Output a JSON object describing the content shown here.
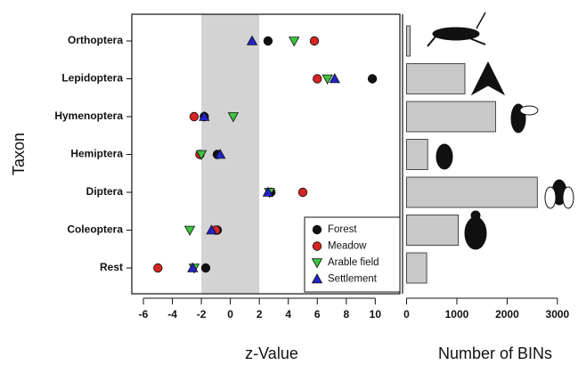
{
  "chart_data": [
    {
      "type": "dot",
      "x_label": "z-Value",
      "y_label": "Taxon",
      "categories": [
        "Orthoptera",
        "Lepidoptera",
        "Hymenoptera",
        "Hemiptera",
        "Diptera",
        "Coleoptera",
        "Rest"
      ],
      "series": [
        {
          "name": "Forest",
          "color": "#111111",
          "marker": "circle",
          "values": [
            2.6,
            9.8,
            -1.8,
            -0.9,
            2.8,
            -0.9,
            -1.7
          ]
        },
        {
          "name": "Meadow",
          "color": "#d42424",
          "marker": "circle",
          "values": [
            5.8,
            6.0,
            -2.5,
            -2.1,
            5.0,
            -1.0,
            -5.0
          ]
        },
        {
          "name": "Arable field",
          "color": "#3cc43c",
          "marker": "triangle-down",
          "values": [
            4.4,
            6.7,
            0.2,
            -2.0,
            2.7,
            -2.8,
            -2.5
          ]
        },
        {
          "name": "Settlement",
          "color": "#2323c8",
          "marker": "triangle-up",
          "values": [
            1.5,
            7.2,
            -1.8,
            -0.7,
            2.6,
            -1.3,
            -2.6
          ]
        }
      ],
      "band": [
        -2,
        2
      ],
      "band_color": "#d3d3d3",
      "xlim": [
        -6.8,
        11.7
      ],
      "xticks": [
        -6,
        -4,
        -2,
        0,
        2,
        4,
        6,
        8,
        10
      ],
      "legend": "lower right"
    },
    {
      "type": "barh",
      "x_label": "Number of BINs",
      "color": "#c8c8c8",
      "values": [
        70,
        1160,
        1770,
        420,
        2600,
        1030,
        400
      ],
      "xlim": [
        -80,
        3250
      ],
      "xticks": [
        0,
        1000,
        2000,
        3000
      ]
    }
  ]
}
